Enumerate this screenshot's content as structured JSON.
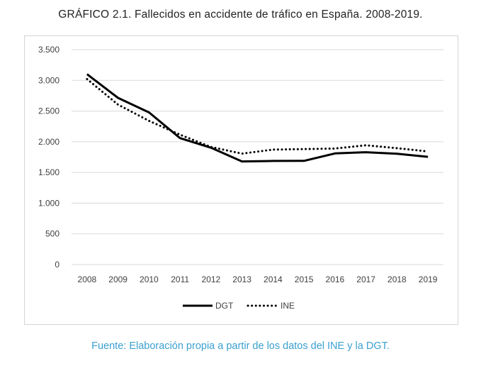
{
  "title": "GRÁFICO 2.1. Fallecidos en accidente de tráfico en España. 2008-2019.",
  "source": "Fuente: Elaboración propia a partir de los datos del INE y la DGT.",
  "chart_data": {
    "type": "line",
    "title": "",
    "xlabel": "",
    "ylabel": "",
    "categories": [
      "2008",
      "2009",
      "2010",
      "2011",
      "2012",
      "2013",
      "2014",
      "2015",
      "2016",
      "2017",
      "2018",
      "2019"
    ],
    "ylim": [
      0,
      3500
    ],
    "yticks": [
      0,
      500,
      1000,
      1500,
      2000,
      2500,
      3000,
      3500
    ],
    "ytick_labels": [
      "0",
      "500",
      "1.000",
      "1.500",
      "2.000",
      "2.500",
      "3.000",
      "3.500"
    ],
    "grid": "horizontal",
    "legend_position": "bottom",
    "series": [
      {
        "name": "DGT",
        "style": "solid",
        "color": "#000000",
        "values": [
          3100,
          2714,
          2478,
          2060,
          1903,
          1680,
          1688,
          1689,
          1810,
          1830,
          1806,
          1755
        ]
      },
      {
        "name": "INE",
        "style": "dotted",
        "color": "#000000",
        "values": [
          3021,
          2605,
          2340,
          2115,
          1915,
          1807,
          1873,
          1880,
          1890,
          1943,
          1896,
          1842
        ]
      }
    ]
  }
}
